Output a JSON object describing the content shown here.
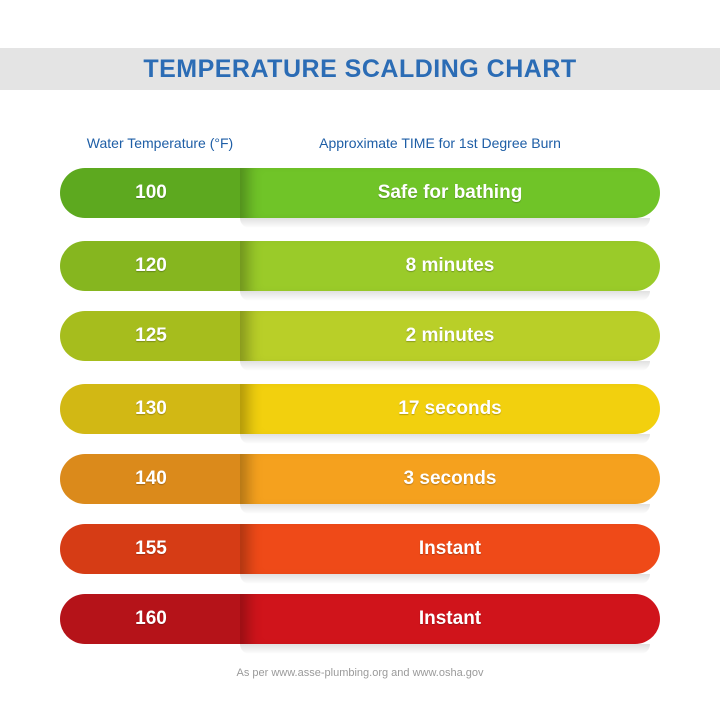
{
  "header": {
    "title": "TEMPERATURE SCALDING CHART"
  },
  "table": {
    "headers": [
      "Water Temperature (°F)",
      "Approximate TIME for 1st Degree Burn"
    ],
    "rows": [
      {
        "temperature": 100,
        "time": "Safe for bathing",
        "color": "#5da91f",
        "color2": "#70c428"
      },
      {
        "temperature": 120,
        "time": "8 minutes",
        "color": "#86b61f",
        "color2": "#9acb29"
      },
      {
        "temperature": 125,
        "time": "2 minutes",
        "color": "#a6bd1d",
        "color2": "#b9cf28"
      },
      {
        "temperature": 130,
        "time": "17 seconds",
        "color": "#d2b814",
        "color2": "#f2d00e"
      },
      {
        "temperature": 140,
        "time": "3 seconds",
        "color": "#db8a1b",
        "color2": "#f5a11e"
      },
      {
        "temperature": 155,
        "time": "Instant",
        "color": "#d63c15",
        "color2": "#ef4a18"
      },
      {
        "temperature": 160,
        "time": "Instant",
        "color": "#b51319",
        "color2": "#d0141b"
      }
    ]
  },
  "footer": {
    "source": "As per www.asse-plumbing.org and www.osha.gov"
  }
}
